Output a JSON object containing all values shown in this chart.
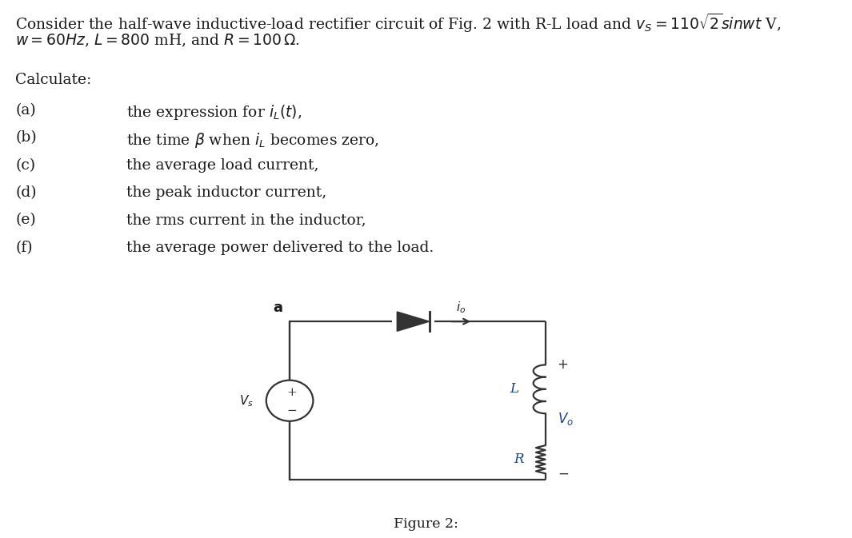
{
  "line1": "Consider the half-wave inductive-load rectifier circuit of Fig. 2 with R-L load and $v_S = 110\\sqrt{2}sinwt$ V,",
  "line2": "$w = 60Hz$, $L = 800$ mH, and $R = 100\\,\\Omega$.",
  "calculate_label": "Calculate:",
  "items": [
    [
      "(a)",
      "the expression for $i_L(t)$,"
    ],
    [
      "(b)",
      "the time $\\beta$ when $i_L$ becomes zero,"
    ],
    [
      "(c)",
      "the average load current,"
    ],
    [
      "(d)",
      "the peak inductor current,"
    ],
    [
      "(e)",
      "the rms current in the inductor,"
    ],
    [
      "(f)",
      "the average power delivered to the load."
    ]
  ],
  "figure_label": "Figure 2:",
  "text_color": "#1a1a1a",
  "circuit_color": "#333333",
  "label_color": "#1a4488",
  "font_size_body": 13.5,
  "font_size_circuit": 12
}
